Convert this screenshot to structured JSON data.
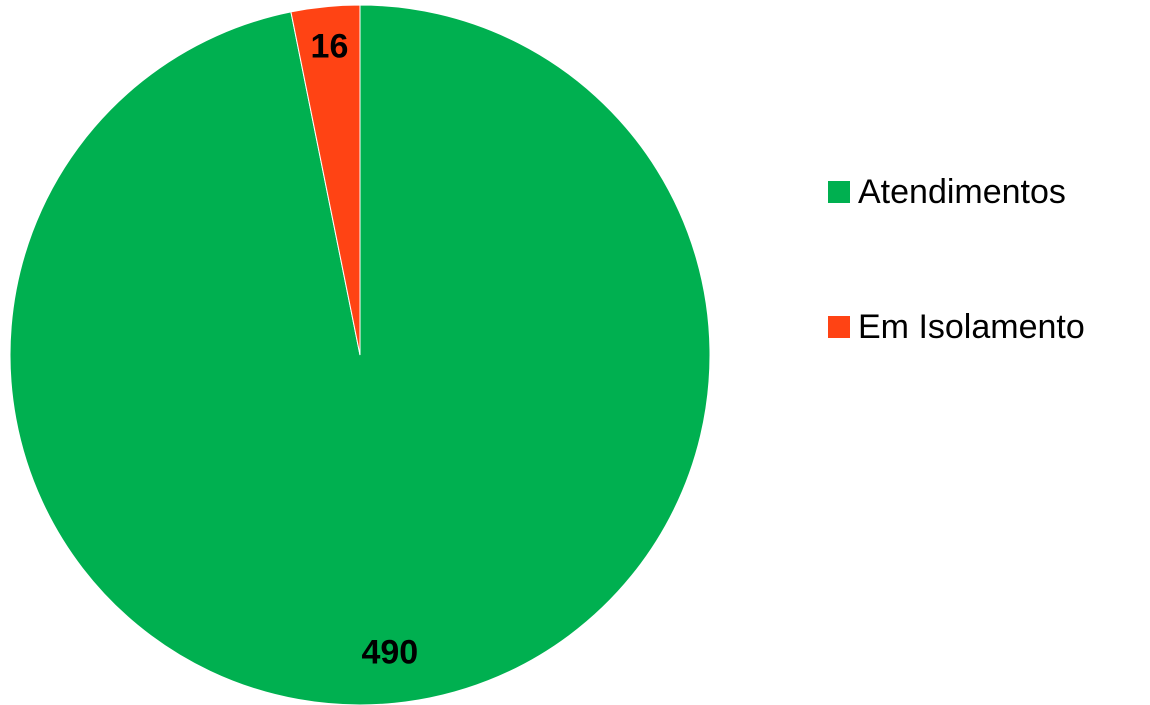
{
  "chart_data": {
    "type": "pie",
    "categories": [
      "Atendimentos",
      "Em Isolamento"
    ],
    "values": [
      490,
      16
    ],
    "colors": [
      "#00B050",
      "#FF4314"
    ],
    "title": "",
    "legend_position": "right",
    "data_labels": [
      "490",
      "16"
    ]
  },
  "legend": {
    "items": [
      {
        "label": "Atendimentos",
        "color": "#00B050"
      },
      {
        "label": "Em Isolamento",
        "color": "#FF4314"
      }
    ]
  }
}
